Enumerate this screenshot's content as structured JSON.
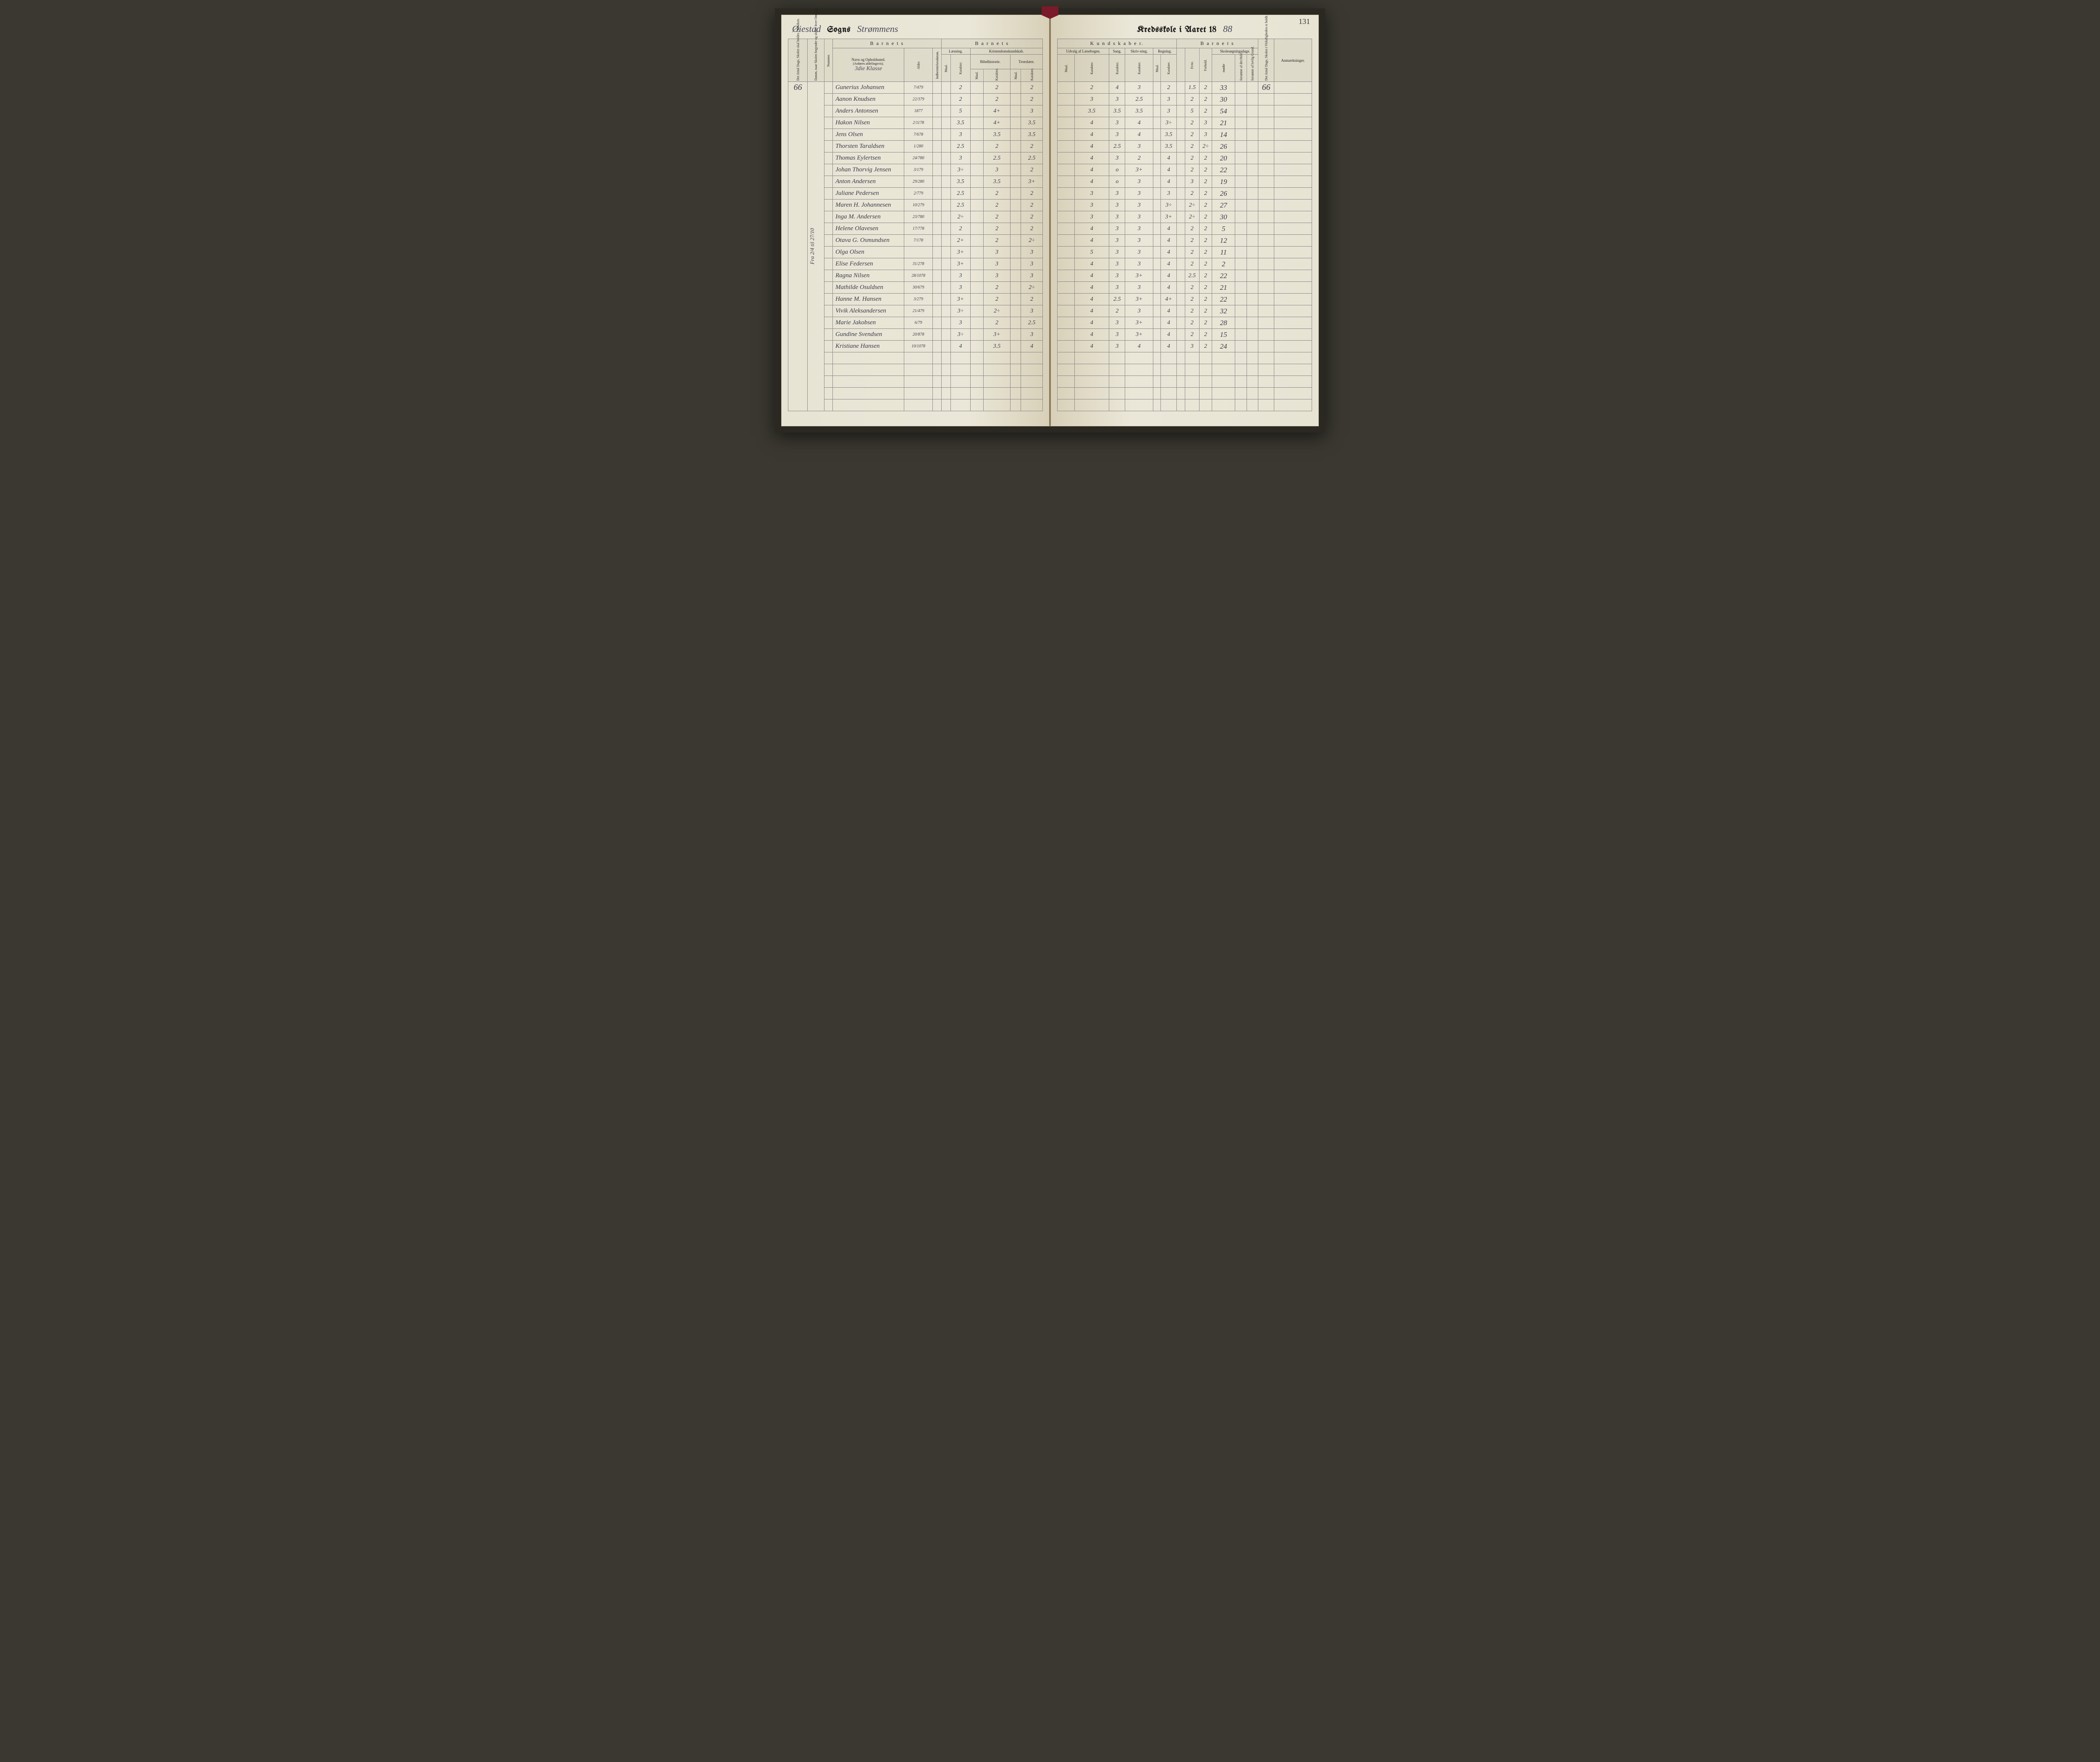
{
  "page_number": "131",
  "header_left": {
    "parish": "Øiestad",
    "sogns_label": "Sogns",
    "place": "Strømmens"
  },
  "header_right": {
    "title": "Kredsskole i Aaret 18",
    "year_suffix": "88"
  },
  "left_table": {
    "antal_dage": "66",
    "date_note": "Fra 2/4 til 27/10",
    "class_label": "3die Klasse",
    "headers": {
      "barnets": "B a r n e t s",
      "col1": "Det Antal Dage, Skolen skal holdes i Kredsen.",
      "col2": "Datum, naar Skolen begynder og slutter hver Omgang.",
      "col3": "Nummer.",
      "navn": "Navn og Opholdssted.",
      "navn_sub": "(Anføres afdelingsvis).",
      "alder": "Alder.",
      "indberettelse": "Indberettelsesdatum.",
      "laesning": "Læsning.",
      "kristendom": "Kristendomskundskab.",
      "bibelhistorie": "Bibelhistorie.",
      "troeslaere": "Troeslære.",
      "maal": "Maal.",
      "karakter": "Karakter."
    },
    "rows": [
      {
        "name": "Gunerius Johansen",
        "alder": "7/479",
        "l_k": "2",
        "b_k": "2",
        "t_k": "2"
      },
      {
        "name": "Aanon Knudsen",
        "alder": "22/379",
        "l_k": "2",
        "b_k": "2",
        "t_k": "2"
      },
      {
        "name": "Anders Antonsen",
        "alder": "1877",
        "l_k": "5",
        "b_k": "4+",
        "t_k": "3"
      },
      {
        "name": "Hakon Nilsen",
        "alder": "2/1178",
        "l_k": "3.5",
        "b_k": "4+",
        "t_k": "3.5"
      },
      {
        "name": "Jens Olsen",
        "alder": "7/678",
        "l_k": "3",
        "b_k": "3.5",
        "t_k": "3.5"
      },
      {
        "name": "Thorsten Taraldsen",
        "alder": "1/280",
        "l_k": "2.5",
        "b_k": "2",
        "t_k": "2"
      },
      {
        "name": "Thomas Eylertsen",
        "alder": "24/780",
        "l_k": "3",
        "b_k": "2.5",
        "t_k": "2.5"
      },
      {
        "name": "Johan Thorvig Jensen",
        "alder": "3/179",
        "l_k": "3÷",
        "b_k": "3",
        "t_k": "2"
      },
      {
        "name": "Anton Andersen",
        "alder": "29/280",
        "l_k": "3.5",
        "b_k": "3.5",
        "t_k": "3+"
      },
      {
        "name": "Juliane Pedersen",
        "alder": "2/779",
        "l_k": "2.5",
        "b_k": "2",
        "t_k": "2"
      },
      {
        "name": "Maren H. Johannesen",
        "alder": "10/279",
        "l_k": "2.5",
        "b_k": "2",
        "t_k": "2"
      },
      {
        "name": "Inga M. Andersen",
        "alder": "23/780",
        "l_k": "2÷",
        "b_k": "2",
        "t_k": "2"
      },
      {
        "name": "Helene Olavesen",
        "alder": "17/778",
        "l_k": "2",
        "b_k": "2",
        "t_k": "2"
      },
      {
        "name": "Otava G. Osmundsen",
        "alder": "7/178",
        "l_k": "2+",
        "b_k": "2",
        "t_k": "2÷"
      },
      {
        "name": "Olga Olsen",
        "alder": "",
        "l_k": "3+",
        "b_k": "3",
        "t_k": "3"
      },
      {
        "name": "Elise Federsen",
        "alder": "31/278",
        "l_k": "3+",
        "b_k": "3",
        "t_k": "3"
      },
      {
        "name": "Ragna Nilsen",
        "alder": "28/1078",
        "l_k": "3",
        "b_k": "3",
        "t_k": "3"
      },
      {
        "name": "Mathilde Osuldsen",
        "alder": "30/679",
        "l_k": "3",
        "b_k": "2",
        "t_k": "2÷"
      },
      {
        "name": "Hanne M. Hansen",
        "alder": "3/279",
        "l_k": "3+",
        "b_k": "2",
        "t_k": "2"
      },
      {
        "name": "Vivik Aleksandersen",
        "alder": "21/479",
        "l_k": "3÷",
        "b_k": "2÷",
        "t_k": "3"
      },
      {
        "name": "Marie Jakobsen",
        "alder": "6/79",
        "l_k": "3",
        "b_k": "2",
        "t_k": "2.5"
      },
      {
        "name": "Gundine Svendsen",
        "alder": "20/878",
        "l_k": "3÷",
        "b_k": "3+",
        "t_k": "3"
      },
      {
        "name": "Kristiane Hansen",
        "alder": "10/1078",
        "l_k": "4",
        "b_k": "3.5",
        "t_k": "4"
      }
    ]
  },
  "right_table": {
    "antal_dage": "66",
    "headers": {
      "kundskaber": "K u n d s k a b e r.",
      "barnets": "B a r n e t s",
      "udvalg": "Udvalg af Læsebogen.",
      "sang": "Sang.",
      "skrivning": "Skriv-ning.",
      "regning": "Regning.",
      "skolesogning": "Skolesøgningsdage.",
      "maal": "Maal.",
      "karakter": "Karakter.",
      "evne": "Evne.",
      "forhold": "Forhold.",
      "modte": "mødte",
      "forsomte_hele": "forsømte af det Hele.",
      "forsomte_lovlig": "forsømte af lovlig Grund.",
      "col_last": "Det Antal Dage, Skolen i Virkeligheden er holdt.",
      "anmerkninger": "Anmærkninger."
    },
    "rows": [
      {
        "u": "2",
        "sa": "4",
        "sk": "3",
        "r_k": "2",
        "ev": "1.5",
        "fo": "2",
        "mo": "33"
      },
      {
        "u": "3",
        "sa": "3",
        "sk": "2.5",
        "r_k": "3",
        "ev": "2",
        "fo": "2",
        "mo": "30"
      },
      {
        "u": "3.5",
        "sa": "3.5",
        "sk": "3.5",
        "r_k": "3",
        "ev": "5",
        "fo": "2",
        "mo": "54"
      },
      {
        "u": "4",
        "sa": "3",
        "sk": "4",
        "r_k": "3÷",
        "ev": "2",
        "fo": "3",
        "mo": "21"
      },
      {
        "u": "4",
        "sa": "3",
        "sk": "4",
        "r_k": "3.5",
        "ev": "2",
        "fo": "3",
        "mo": "14"
      },
      {
        "u": "4",
        "sa": "2.5",
        "sk": "3",
        "r_k": "3.5",
        "ev": "2",
        "fo": "2÷",
        "mo": "26"
      },
      {
        "u": "4",
        "sa": "3",
        "sk": "2",
        "r_k": "4",
        "ev": "2",
        "fo": "2",
        "mo": "20"
      },
      {
        "u": "4",
        "sa": "o",
        "sk": "3+",
        "r_k": "4",
        "ev": "2",
        "fo": "2",
        "mo": "22"
      },
      {
        "u": "4",
        "sa": "o",
        "sk": "3",
        "r_k": "4",
        "ev": "3",
        "fo": "2",
        "mo": "19"
      },
      {
        "u": "3",
        "sa": "3",
        "sk": "3",
        "r_k": "3",
        "ev": "2",
        "fo": "2",
        "mo": "26"
      },
      {
        "u": "3",
        "sa": "3",
        "sk": "3",
        "r_k": "3÷",
        "ev": "2÷",
        "fo": "2",
        "mo": "27"
      },
      {
        "u": "3",
        "sa": "3",
        "sk": "3",
        "r_k": "3+",
        "ev": "2÷",
        "fo": "2",
        "mo": "30"
      },
      {
        "u": "4",
        "sa": "3",
        "sk": "3",
        "r_k": "4",
        "ev": "2",
        "fo": "2",
        "mo": "5"
      },
      {
        "u": "4",
        "sa": "3",
        "sk": "3",
        "r_k": "4",
        "ev": "2",
        "fo": "2",
        "mo": "12"
      },
      {
        "u": "5",
        "sa": "3",
        "sk": "3",
        "r_k": "4",
        "ev": "2",
        "fo": "2",
        "mo": "11"
      },
      {
        "u": "4",
        "sa": "3",
        "sk": "3",
        "r_k": "4",
        "ev": "2",
        "fo": "2",
        "mo": "2"
      },
      {
        "u": "4",
        "sa": "3",
        "sk": "3+",
        "r_k": "4",
        "ev": "2.5",
        "fo": "2",
        "mo": "22"
      },
      {
        "u": "4",
        "sa": "3",
        "sk": "3",
        "r_k": "4",
        "ev": "2",
        "fo": "2",
        "mo": "21"
      },
      {
        "u": "4",
        "sa": "2.5",
        "sk": "3+",
        "r_k": "4+",
        "ev": "2",
        "fo": "2",
        "mo": "22"
      },
      {
        "u": "4",
        "sa": "2",
        "sk": "3",
        "r_k": "4",
        "ev": "2",
        "fo": "2",
        "mo": "32"
      },
      {
        "u": "4",
        "sa": "3",
        "sk": "3+",
        "r_k": "4",
        "ev": "2",
        "fo": "2",
        "mo": "28"
      },
      {
        "u": "4",
        "sa": "3",
        "sk": "3+",
        "r_k": "4",
        "ev": "2",
        "fo": "2",
        "mo": "15"
      },
      {
        "u": "4",
        "sa": "3",
        "sk": "4",
        "r_k": "4",
        "ev": "3",
        "fo": "2",
        "mo": "24"
      }
    ]
  },
  "colors": {
    "page_bg": "#e8e4d4",
    "ink": "#3a3a4a",
    "print": "#1a1a1a",
    "border": "#888888",
    "ribbon": "#7a1a2a"
  }
}
